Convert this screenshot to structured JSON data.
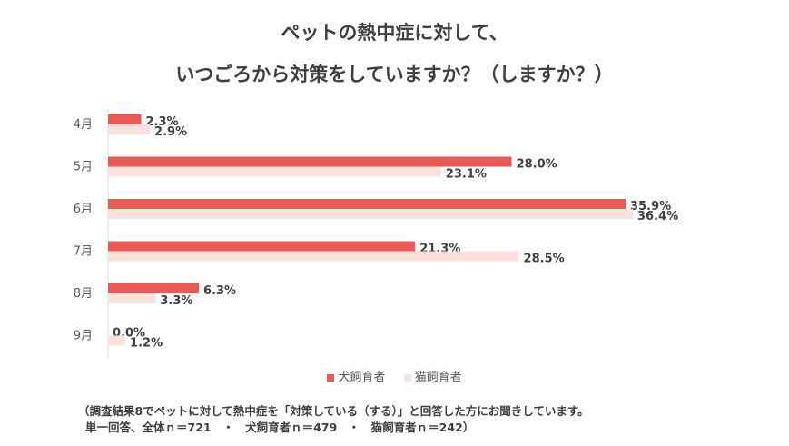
{
  "chart_data": {
    "type": "bar",
    "orientation": "horizontal",
    "title": "ペットの熱中症に対して、",
    "subtitle": "いつごろから対策をしていますか？（しますか？）",
    "categories": [
      "4月",
      "5月",
      "6月",
      "7月",
      "8月",
      "9月"
    ],
    "series": [
      {
        "name": "犬飼育者",
        "values": [
          2.3,
          28.0,
          35.9,
          21.3,
          6.3,
          0.0
        ],
        "labels": [
          "2.3%",
          "28.0%",
          "35.9%",
          "21.3%",
          "6.3%",
          "0.0%"
        ],
        "color": "#e85a55"
      },
      {
        "name": "猫飼育者",
        "values": [
          2.9,
          23.1,
          36.4,
          28.5,
          3.3,
          1.2
        ],
        "labels": [
          "2.9%",
          "23.1%",
          "36.4%",
          "28.5%",
          "3.3%",
          "1.2%"
        ],
        "color": "#fbe0dc"
      }
    ],
    "xlim": [
      0,
      40
    ],
    "grid": false,
    "legend_position": "bottom"
  },
  "notes": {
    "line1": "（調査結果8でペットに対して熱中症を「対策している（する）」と回答した方にお聞きしています。",
    "line2": "単一回答、全体ｎ＝721　・　犬飼育者ｎ＝479　・　猫飼育者ｎ＝242）"
  }
}
